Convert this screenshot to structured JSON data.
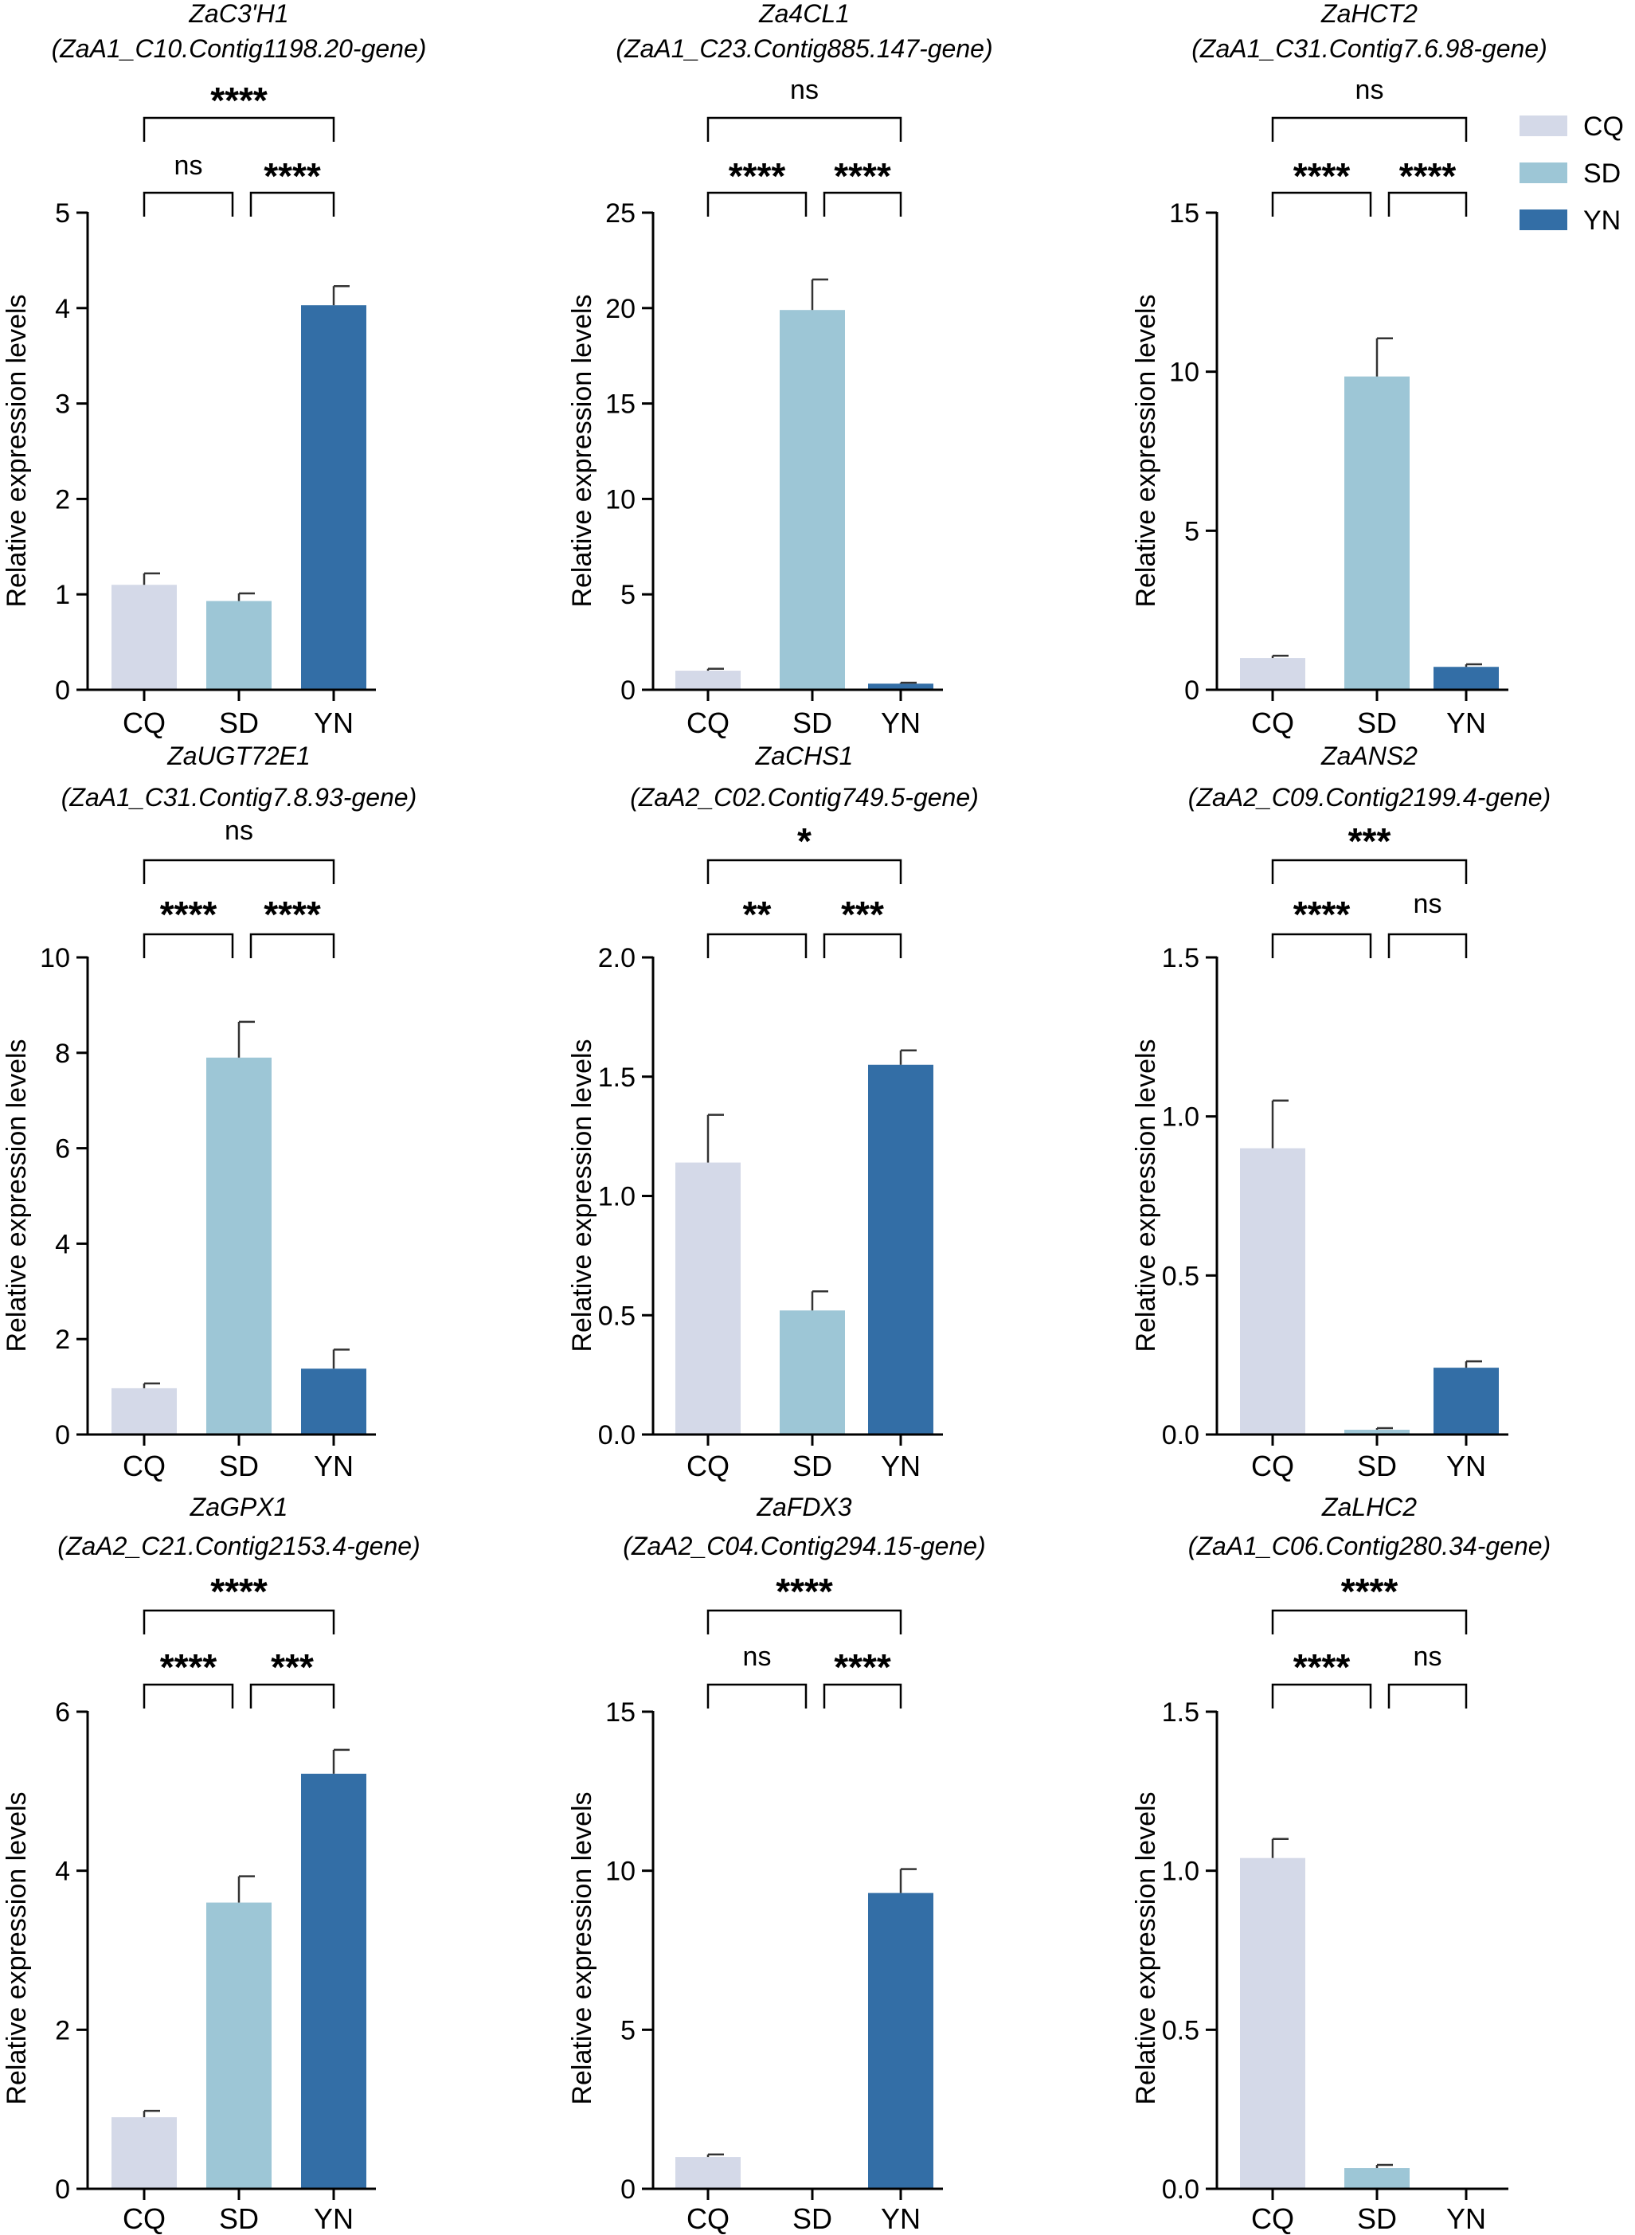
{
  "colors": {
    "CQ": "#d4d9e8",
    "SD": "#9dc6d6",
    "YN": "#336ea6"
  },
  "legend": [
    {
      "key": "CQ",
      "label": "CQ"
    },
    {
      "key": "SD",
      "label": "SD"
    },
    {
      "key": "YN",
      "label": "YN"
    }
  ],
  "chart_data": [
    {
      "type": "bar",
      "gene": "ZaC3'H1",
      "gene_id": "(ZaA1_C10.Contig1198.20-gene)",
      "categories": [
        "CQ",
        "SD",
        "YN"
      ],
      "values": [
        1.1,
        0.93,
        4.03
      ],
      "errors": [
        0.12,
        0.08,
        0.2
      ],
      "ylabel": "Relative expression levels",
      "ylim": [
        0,
        5
      ],
      "yticks": [
        "0",
        "1",
        "2",
        "3",
        "4",
        "5"
      ],
      "significance": [
        {
          "label": "ns"
        },
        {
          "label": "****"
        },
        {
          "label": "****"
        }
      ]
    },
    {
      "type": "bar",
      "gene": "Za4CL1",
      "gene_id": "(ZaA1_C23.Contig885.147-gene)",
      "categories": [
        "CQ",
        "SD",
        "YN"
      ],
      "values": [
        1.0,
        19.9,
        0.32
      ],
      "errors": [
        0.1,
        1.6,
        0.05
      ],
      "ylabel": "Relative expression levels",
      "ylim": [
        0,
        25
      ],
      "yticks": [
        "0",
        "5",
        "10",
        "15",
        "20",
        "25"
      ],
      "significance": [
        {
          "label": "****"
        },
        {
          "label": "****"
        },
        {
          "label": "ns"
        }
      ]
    },
    {
      "type": "bar",
      "gene": "ZaHCT2",
      "gene_id": "(ZaA1_C31.Contig7.6.98-gene)",
      "categories": [
        "CQ",
        "SD",
        "YN"
      ],
      "values": [
        1.0,
        9.85,
        0.72
      ],
      "errors": [
        0.07,
        1.2,
        0.08
      ],
      "ylabel": "Relative expression levels",
      "ylim": [
        0,
        15
      ],
      "yticks": [
        "0",
        "5",
        "10",
        "15"
      ],
      "significance": [
        {
          "label": "****"
        },
        {
          "label": "****"
        },
        {
          "label": "ns"
        }
      ]
    },
    {
      "type": "bar",
      "gene": "ZaUGT72E1",
      "gene_id": "(ZaA1_C31.Contig7.8.93-gene)",
      "categories": [
        "CQ",
        "SD",
        "YN"
      ],
      "values": [
        0.97,
        7.9,
        1.38
      ],
      "errors": [
        0.1,
        0.75,
        0.4
      ],
      "ylabel": "Relative expression levels",
      "ylim": [
        0,
        10
      ],
      "yticks": [
        "0",
        "2",
        "4",
        "6",
        "8",
        "10"
      ],
      "significance": [
        {
          "label": "****"
        },
        {
          "label": "****"
        },
        {
          "label": "ns"
        }
      ]
    },
    {
      "type": "bar",
      "gene": "ZaCHS1",
      "gene_id": "(ZaA2_C02.Contig749.5-gene)",
      "categories": [
        "CQ",
        "SD",
        "YN"
      ],
      "values": [
        1.14,
        0.52,
        1.55
      ],
      "errors": [
        0.2,
        0.08,
        0.06
      ],
      "ylabel": "Relative expression levels",
      "ylim": [
        0,
        2
      ],
      "yticks": [
        "0.0",
        "0.5",
        "1.0",
        "1.5",
        "2.0"
      ],
      "significance": [
        {
          "label": "**"
        },
        {
          "label": "***"
        },
        {
          "label": "*"
        }
      ]
    },
    {
      "type": "bar",
      "gene": "ZaANS2",
      "gene_id": "(ZaA2_C09.Contig2199.4-gene)",
      "categories": [
        "CQ",
        "SD",
        "YN"
      ],
      "values": [
        0.9,
        0.015,
        0.21
      ],
      "errors": [
        0.15,
        0.005,
        0.02
      ],
      "ylabel": "Relative expression levels",
      "ylim": [
        0,
        1.5
      ],
      "yticks": [
        "0.0",
        "0.5",
        "1.0",
        "1.5"
      ],
      "significance": [
        {
          "label": "****"
        },
        {
          "label": "ns"
        },
        {
          "label": "***"
        }
      ]
    },
    {
      "type": "bar",
      "gene": "ZaGPX1",
      "gene_id": "(ZaA2_C21.Contig2153.4-gene)",
      "categories": [
        "CQ",
        "SD",
        "YN"
      ],
      "values": [
        0.9,
        3.6,
        5.22
      ],
      "errors": [
        0.08,
        0.33,
        0.3
      ],
      "ylabel": "Relative expression levels",
      "ylim": [
        0,
        6
      ],
      "yticks": [
        "0",
        "2",
        "4",
        "6"
      ],
      "significance": [
        {
          "label": "****"
        },
        {
          "label": "***"
        },
        {
          "label": "****"
        }
      ]
    },
    {
      "type": "bar",
      "gene": "ZaFDX3",
      "gene_id": "(ZaA2_C04.Contig294.15-gene)",
      "categories": [
        "CQ",
        "SD",
        "YN"
      ],
      "values": [
        1.0,
        0.0,
        9.3
      ],
      "errors": [
        0.08,
        0.0,
        0.75
      ],
      "ylabel": "Relative expression levels",
      "ylim": [
        0,
        15
      ],
      "yticks": [
        "0",
        "5",
        "10",
        "15"
      ],
      "significance": [
        {
          "label": "ns"
        },
        {
          "label": "****"
        },
        {
          "label": "****"
        }
      ]
    },
    {
      "type": "bar",
      "gene": "ZaLHC2",
      "gene_id": "(ZaA1_C06.Contig280.34-gene)",
      "categories": [
        "CQ",
        "SD",
        "YN"
      ],
      "values": [
        1.04,
        0.065,
        0.0
      ],
      "errors": [
        0.06,
        0.01,
        0.0
      ],
      "ylabel": "Relative expression levels",
      "ylim": [
        0,
        1.5
      ],
      "yticks": [
        "0.0",
        "0.5",
        "1.0",
        "1.5"
      ],
      "significance": [
        {
          "label": "****"
        },
        {
          "label": "ns"
        },
        {
          "label": "****"
        }
      ]
    }
  ]
}
